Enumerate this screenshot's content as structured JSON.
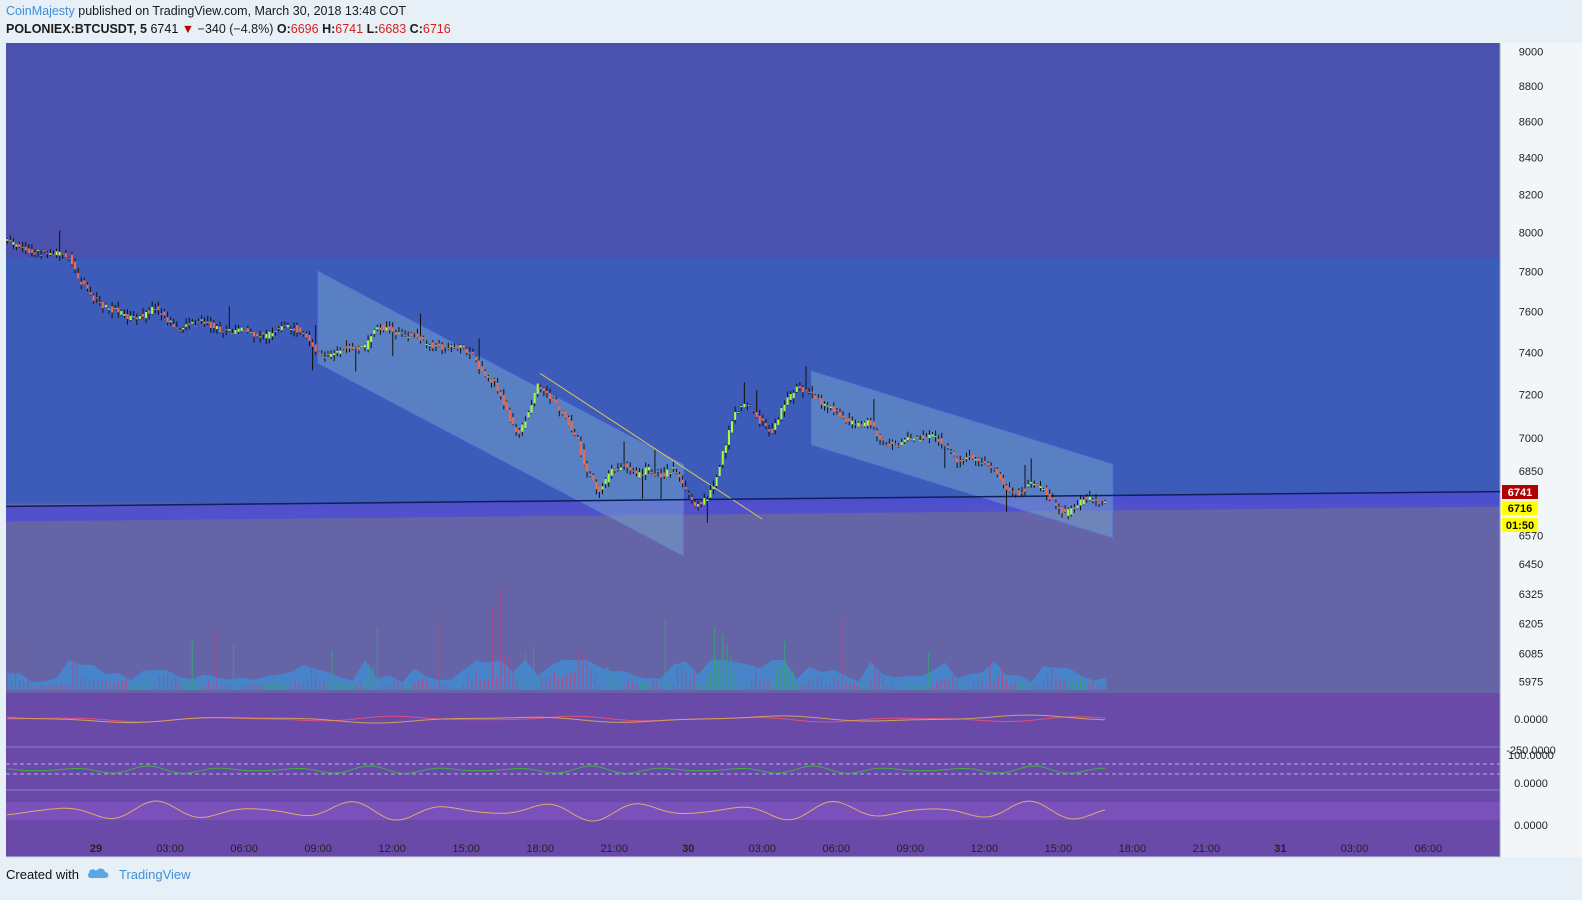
{
  "header": {
    "author": "CoinMajesty",
    "published": "published on TradingView.com, March 30, 2018 13:48 COT",
    "symbol": "POLONIEX:BTCUSDT, 5",
    "last": "6741",
    "change": "−340 (−4.8%)",
    "o_label": "O:",
    "o_value": "6696",
    "h_label": "H:",
    "h_value": "6741",
    "l_label": "L:",
    "l_value": "6683",
    "c_label": "C:",
    "c_value": "6716"
  },
  "footer": {
    "created_with": "Created with",
    "brand": "TradingView"
  },
  "colors": {
    "page_bg": "#e6f0f6",
    "panel_upper": "#4a52ae",
    "panel_zone": "#3d5bb8",
    "panel_volume": "#6464a6",
    "panel_indicators": "#6a4aa8",
    "candle_up": "#a6ff3a",
    "candle_down": "#f06a4a",
    "last_price_tag": "#b00000",
    "close_price_tag": "#ffff00",
    "volume_area": "#3d8fd6",
    "channel_fill": "#7aaed0"
  },
  "chart_data": {
    "type": "candlestick",
    "title": "POLONIEX:BTCUSDT, 5",
    "y_axis": {
      "scale": "log",
      "ticks": [
        9000,
        8800,
        8600,
        8400,
        8200,
        8000,
        7800,
        7600,
        7400,
        7200,
        7000,
        6850,
        6570,
        6450,
        6325,
        6205,
        6085,
        5975
      ],
      "tick_labels": [
        "9000",
        "8800",
        "8600",
        "8400",
        "8200",
        "8000",
        "7800",
        "7600",
        "7400",
        "7200",
        "7000",
        "6850",
        "6570",
        "6450",
        "6325",
        "6205",
        "6085",
        "5975"
      ],
      "range": [
        5930,
        9050
      ]
    },
    "x_axis": {
      "tick_labels": [
        "29",
        "03:00",
        "06:00",
        "09:00",
        "12:00",
        "15:00",
        "18:00",
        "21:00",
        "30",
        "03:00",
        "06:00",
        "09:00",
        "12:00",
        "15:00",
        "18:00",
        "21:00",
        "31",
        "03:00",
        "06:00"
      ],
      "tick_hours": [
        0,
        3,
        6,
        9,
        12,
        15,
        18,
        21,
        24,
        27,
        30,
        33,
        36,
        39,
        42,
        45,
        48,
        51,
        54
      ],
      "bold_ticks": [
        "29",
        "30",
        "31"
      ],
      "range_hours": [
        -3.65,
        56.9
      ]
    },
    "price_path": [
      {
        "t": -3.6,
        "p": 7960
      },
      {
        "t": -2.6,
        "p": 7900
      },
      {
        "t": -1.5,
        "p": 7890
      },
      {
        "t": -0.9,
        "p": 7870
      },
      {
        "t": -0.6,
        "p": 7760
      },
      {
        "t": 0.0,
        "p": 7670
      },
      {
        "t": 0.5,
        "p": 7620
      },
      {
        "t": 1.0,
        "p": 7600
      },
      {
        "t": 1.4,
        "p": 7570
      },
      {
        "t": 2.0,
        "p": 7580
      },
      {
        "t": 2.5,
        "p": 7620
      },
      {
        "t": 3.0,
        "p": 7560
      },
      {
        "t": 3.5,
        "p": 7510
      },
      {
        "t": 4.0,
        "p": 7540
      },
      {
        "t": 4.5,
        "p": 7550
      },
      {
        "t": 5.0,
        "p": 7520
      },
      {
        "t": 5.5,
        "p": 7500
      },
      {
        "t": 6.0,
        "p": 7510
      },
      {
        "t": 6.5,
        "p": 7490
      },
      {
        "t": 7.0,
        "p": 7480
      },
      {
        "t": 7.5,
        "p": 7520
      },
      {
        "t": 8.0,
        "p": 7530
      },
      {
        "t": 8.6,
        "p": 7490
      },
      {
        "t": 9.0,
        "p": 7410
      },
      {
        "t": 9.4,
        "p": 7380
      },
      {
        "t": 10.0,
        "p": 7410
      },
      {
        "t": 10.5,
        "p": 7430
      },
      {
        "t": 11.0,
        "p": 7420
      },
      {
        "t": 11.5,
        "p": 7530
      },
      {
        "t": 12.0,
        "p": 7510
      },
      {
        "t": 12.5,
        "p": 7480
      },
      {
        "t": 13.0,
        "p": 7490
      },
      {
        "t": 13.5,
        "p": 7440
      },
      {
        "t": 14.0,
        "p": 7430
      },
      {
        "t": 14.5,
        "p": 7420
      },
      {
        "t": 15.0,
        "p": 7430
      },
      {
        "t": 15.4,
        "p": 7380
      },
      {
        "t": 15.8,
        "p": 7300
      },
      {
        "t": 16.3,
        "p": 7250
      },
      {
        "t": 16.7,
        "p": 7140
      },
      {
        "t": 17.0,
        "p": 7060
      },
      {
        "t": 17.3,
        "p": 7020
      },
      {
        "t": 17.7,
        "p": 7130
      },
      {
        "t": 18.0,
        "p": 7250
      },
      {
        "t": 18.4,
        "p": 7200
      },
      {
        "t": 18.8,
        "p": 7150
      },
      {
        "t": 19.2,
        "p": 7080
      },
      {
        "t": 19.6,
        "p": 7000
      },
      {
        "t": 20.0,
        "p": 6850
      },
      {
        "t": 20.5,
        "p": 6760
      },
      {
        "t": 21.0,
        "p": 6850
      },
      {
        "t": 21.5,
        "p": 6880
      },
      {
        "t": 22.0,
        "p": 6830
      },
      {
        "t": 22.5,
        "p": 6860
      },
      {
        "t": 23.0,
        "p": 6830
      },
      {
        "t": 23.5,
        "p": 6860
      },
      {
        "t": 24.0,
        "p": 6770
      },
      {
        "t": 24.4,
        "p": 6700
      },
      {
        "t": 24.8,
        "p": 6720
      },
      {
        "t": 25.2,
        "p": 6790
      },
      {
        "t": 25.6,
        "p": 6960
      },
      {
        "t": 26.0,
        "p": 7120
      },
      {
        "t": 26.5,
        "p": 7160
      },
      {
        "t": 27.0,
        "p": 7080
      },
      {
        "t": 27.5,
        "p": 7030
      },
      {
        "t": 28.0,
        "p": 7150
      },
      {
        "t": 28.5,
        "p": 7230
      },
      {
        "t": 29.0,
        "p": 7220
      },
      {
        "t": 29.5,
        "p": 7160
      },
      {
        "t": 30.0,
        "p": 7130
      },
      {
        "t": 30.5,
        "p": 7080
      },
      {
        "t": 31.0,
        "p": 7060
      },
      {
        "t": 31.5,
        "p": 7070
      },
      {
        "t": 32.0,
        "p": 6980
      },
      {
        "t": 32.5,
        "p": 6960
      },
      {
        "t": 33.0,
        "p": 6990
      },
      {
        "t": 33.5,
        "p": 7000
      },
      {
        "t": 34.0,
        "p": 7010
      },
      {
        "t": 34.5,
        "p": 6970
      },
      {
        "t": 35.0,
        "p": 6900
      },
      {
        "t": 35.5,
        "p": 6920
      },
      {
        "t": 36.0,
        "p": 6890
      },
      {
        "t": 36.5,
        "p": 6860
      },
      {
        "t": 37.0,
        "p": 6770
      },
      {
        "t": 37.5,
        "p": 6750
      },
      {
        "t": 38.0,
        "p": 6790
      },
      {
        "t": 38.5,
        "p": 6780
      },
      {
        "t": 39.0,
        "p": 6700
      },
      {
        "t": 39.4,
        "p": 6660
      },
      {
        "t": 39.8,
        "p": 6700
      },
      {
        "t": 40.2,
        "p": 6730
      },
      {
        "t": 40.6,
        "p": 6720
      },
      {
        "t": 41.0,
        "p": 6716
      }
    ],
    "last_value": 6741,
    "close_value": 6716,
    "countdown": "01:50",
    "price_tag_labels": [
      "6741",
      "6716",
      "01:50"
    ],
    "support_line": {
      "from": {
        "t": -3.65,
        "p": 6695
      },
      "to": {
        "t": 56.9,
        "p": 6760
      }
    },
    "resistance_zone": [
      6690,
      7870
    ],
    "channels": [
      {
        "start": {
          "t": 9.0,
          "p": 7800
        },
        "end": {
          "t": 23.8,
          "p": 6880
        },
        "width_price_at_start": 450
      },
      {
        "start": {
          "t": 29.0,
          "p": 7310
        },
        "end": {
          "t": 41.2,
          "p": 6880
        },
        "width_price_at_start": 340
      }
    ],
    "trend_line": {
      "from": {
        "t": 18.0,
        "p": 7300
      },
      "to": {
        "t": 27.0,
        "p": 6640
      }
    },
    "indicators": [
      {
        "name": "",
        "labels": [
          "0.0000",
          "-250.0000"
        ]
      },
      {
        "name": "",
        "labels": [
          "100.0000",
          "0.0000"
        ]
      },
      {
        "name": "",
        "labels": [
          "0.0000"
        ]
      }
    ]
  }
}
